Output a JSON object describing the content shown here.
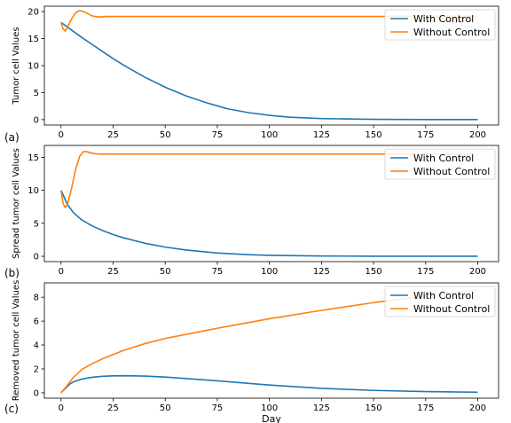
{
  "colors": {
    "with_control": "#1f77b4",
    "without_control": "#ff7f0e"
  },
  "chart_data": [
    {
      "type": "line",
      "panel_label": "(a)",
      "ylabel": "Tumor cell  Values",
      "xlabel": "",
      "xlim": [
        -8,
        210
      ],
      "ylim": [
        -1,
        21
      ],
      "xticks": [
        0,
        25,
        50,
        75,
        100,
        125,
        150,
        175,
        200
      ],
      "yticks": [
        0,
        5,
        10,
        15,
        20
      ],
      "legend": "top-right",
      "series": [
        {
          "name": "With Control",
          "color": "#1f77b4",
          "x": [
            0,
            5,
            10,
            15,
            20,
            25,
            30,
            40,
            50,
            60,
            70,
            80,
            90,
            100,
            110,
            125,
            150,
            175,
            200
          ],
          "y": [
            18,
            16.6,
            15.2,
            13.9,
            12.6,
            11.3,
            10.1,
            7.9,
            6.0,
            4.4,
            3.1,
            2.0,
            1.3,
            0.8,
            0.45,
            0.2,
            0.05,
            0.02,
            0.01
          ]
        },
        {
          "name": "Without Control",
          "color": "#ff7f0e",
          "x": [
            0,
            1,
            2,
            3,
            5,
            7,
            9,
            11,
            13,
            15,
            18,
            22,
            30,
            50,
            100,
            150,
            200
          ],
          "y": [
            18,
            16.8,
            16.4,
            17.0,
            18.6,
            19.8,
            20.2,
            20.0,
            19.6,
            19.2,
            19.0,
            19.1,
            19.1,
            19.1,
            19.1,
            19.1,
            19.1
          ]
        }
      ]
    },
    {
      "type": "line",
      "panel_label": "(b)",
      "ylabel": "Spread tumor cell  Values",
      "xlabel": "",
      "xlim": [
        -8,
        210
      ],
      "ylim": [
        -0.8,
        16.8
      ],
      "xticks": [
        0,
        25,
        50,
        75,
        100,
        125,
        150,
        175,
        200
      ],
      "yticks": [
        0,
        5,
        10,
        15
      ],
      "legend": "top-right",
      "series": [
        {
          "name": "With Control",
          "color": "#1f77b4",
          "x": [
            0,
            3,
            6,
            10,
            15,
            20,
            25,
            30,
            40,
            50,
            60,
            75,
            90,
            100,
            125,
            150,
            175,
            200
          ],
          "y": [
            10,
            7.9,
            6.6,
            5.5,
            4.6,
            3.9,
            3.3,
            2.8,
            2.0,
            1.4,
            0.95,
            0.5,
            0.25,
            0.15,
            0.05,
            0.02,
            0.01,
            0.01
          ]
        },
        {
          "name": "Without Control",
          "color": "#ff7f0e",
          "x": [
            0,
            1,
            2,
            3,
            5,
            7,
            9,
            11,
            13,
            15,
            18,
            22,
            30,
            50,
            100,
            150,
            200
          ],
          "y": [
            10,
            8.0,
            7.4,
            7.8,
            10.2,
            13.2,
            15.2,
            15.9,
            15.8,
            15.6,
            15.5,
            15.5,
            15.5,
            15.5,
            15.5,
            15.5,
            15.5
          ]
        }
      ]
    },
    {
      "type": "line",
      "panel_label": "(c)",
      "ylabel": "Removed tumor cell  Values",
      "xlabel": "Day",
      "xlim": [
        -8,
        210
      ],
      "ylim": [
        -0.45,
        9.2
      ],
      "xticks": [
        0,
        25,
        50,
        75,
        100,
        125,
        150,
        175,
        200
      ],
      "yticks": [
        0,
        2,
        4,
        6,
        8
      ],
      "legend": "top-right",
      "series": [
        {
          "name": "With Control",
          "color": "#1f77b4",
          "x": [
            0,
            2,
            4,
            6,
            10,
            15,
            20,
            25,
            30,
            40,
            50,
            75,
            100,
            125,
            150,
            175,
            200
          ],
          "y": [
            0,
            0.35,
            0.7,
            0.92,
            1.15,
            1.3,
            1.38,
            1.42,
            1.43,
            1.4,
            1.32,
            1.0,
            0.65,
            0.37,
            0.2,
            0.1,
            0.05
          ]
        },
        {
          "name": "Without Control",
          "color": "#ff7f0e",
          "x": [
            0,
            2,
            4,
            6,
            10,
            15,
            20,
            25,
            30,
            40,
            50,
            75,
            100,
            125,
            150,
            175,
            200
          ],
          "y": [
            0,
            0.4,
            0.85,
            1.3,
            1.95,
            2.45,
            2.85,
            3.2,
            3.55,
            4.1,
            4.55,
            5.4,
            6.2,
            6.9,
            7.55,
            8.1,
            8.6
          ]
        }
      ]
    }
  ]
}
